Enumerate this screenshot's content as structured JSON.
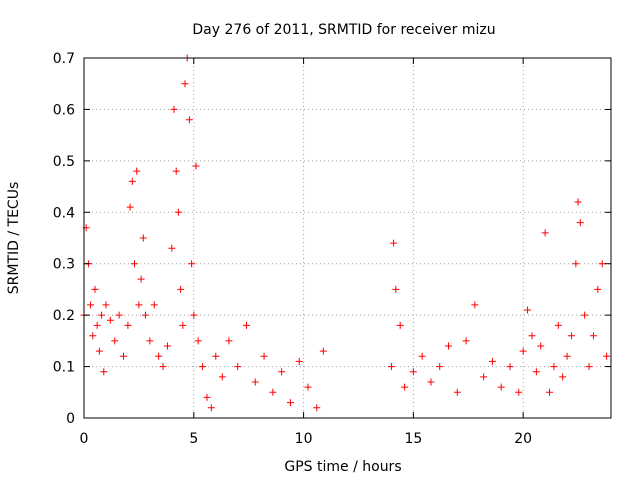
{
  "chart_data": {
    "type": "scatter",
    "title": "Day 276 of 2011, SRMTID for receiver mizu",
    "xlabel": "GPS time / hours",
    "ylabel": "SRMTID / TECUs",
    "xlim": [
      0,
      24
    ],
    "ylim": [
      0,
      0.7
    ],
    "xticks": [
      0,
      5,
      10,
      15,
      20
    ],
    "xtick_labels": [
      "0",
      "5",
      "10",
      "15",
      "20"
    ],
    "yticks": [
      0,
      0.1,
      0.2,
      0.3,
      0.4,
      0.5,
      0.6,
      0.7
    ],
    "ytick_labels": [
      "0",
      "0.1",
      "0.2",
      "0.3",
      "0.4",
      "0.5",
      "0.6",
      "0.7"
    ],
    "grid": true,
    "marker": "plus",
    "color": "#ff0000",
    "series": [
      {
        "name": "SRMTID",
        "x": [
          0.0,
          0.1,
          0.2,
          0.3,
          0.4,
          0.5,
          0.6,
          0.7,
          0.8,
          0.9,
          1.0,
          1.2,
          1.4,
          1.6,
          1.8,
          2.0,
          2.1,
          2.2,
          2.3,
          2.4,
          2.5,
          2.6,
          2.7,
          2.8,
          3.0,
          3.2,
          3.4,
          3.6,
          3.8,
          4.0,
          4.1,
          4.2,
          4.3,
          4.4,
          4.5,
          4.6,
          4.7,
          4.8,
          4.9,
          5.0,
          5.1,
          5.2,
          5.4,
          5.6,
          5.8,
          6.0,
          6.3,
          6.6,
          7.0,
          7.4,
          7.8,
          8.2,
          8.6,
          9.0,
          9.4,
          9.8,
          10.2,
          10.6,
          10.9,
          14.0,
          14.1,
          14.2,
          14.4,
          14.6,
          15.0,
          15.4,
          15.8,
          16.2,
          16.6,
          17.0,
          17.4,
          17.8,
          18.2,
          18.6,
          19.0,
          19.4,
          19.8,
          20.0,
          20.2,
          20.4,
          20.6,
          20.8,
          21.0,
          21.2,
          21.4,
          21.6,
          21.8,
          22.0,
          22.2,
          22.4,
          22.5,
          22.6,
          22.8,
          23.0,
          23.2,
          23.4,
          23.6,
          23.8
        ],
        "values": [
          0.2,
          0.37,
          0.3,
          0.22,
          0.16,
          0.25,
          0.18,
          0.13,
          0.2,
          0.09,
          0.22,
          0.19,
          0.15,
          0.2,
          0.12,
          0.18,
          0.41,
          0.46,
          0.3,
          0.48,
          0.22,
          0.27,
          0.35,
          0.2,
          0.15,
          0.22,
          0.12,
          0.1,
          0.14,
          0.33,
          0.6,
          0.48,
          0.4,
          0.25,
          0.18,
          0.65,
          0.7,
          0.58,
          0.3,
          0.2,
          0.49,
          0.15,
          0.1,
          0.04,
          0.02,
          0.12,
          0.08,
          0.15,
          0.1,
          0.18,
          0.07,
          0.12,
          0.05,
          0.09,
          0.03,
          0.11,
          0.06,
          0.02,
          0.13,
          0.1,
          0.34,
          0.25,
          0.18,
          0.06,
          0.09,
          0.12,
          0.07,
          0.1,
          0.14,
          0.05,
          0.15,
          0.22,
          0.08,
          0.11,
          0.06,
          0.1,
          0.05,
          0.13,
          0.21,
          0.16,
          0.09,
          0.14,
          0.36,
          0.05,
          0.1,
          0.18,
          0.08,
          0.12,
          0.16,
          0.3,
          0.42,
          0.38,
          0.2,
          0.1,
          0.16,
          0.25,
          0.3,
          0.12
        ]
      }
    ]
  }
}
